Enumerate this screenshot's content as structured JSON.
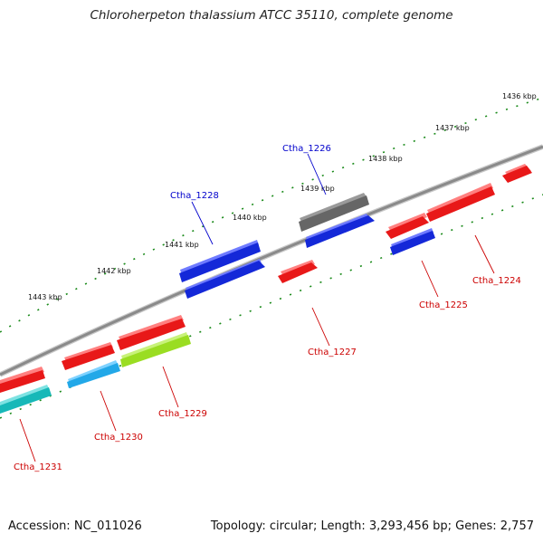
{
  "title": "Chloroherpeton thalassium ATCC 35110, complete genome",
  "accession": "Accession: NC_011026",
  "stats": "Topology: circular; Length: 3,293,456 bp; Genes: 2,757",
  "colors": {
    "backbone": "#8a8a8a",
    "tick": "#1a8a1a",
    "label_red": "#cc0000",
    "label_blue": "#0000cc"
  },
  "kbp_labels": [
    {
      "id": "1436",
      "text": "1436 kbp"
    },
    {
      "id": "1437",
      "text": "1437 kbp"
    },
    {
      "id": "1438",
      "text": "1438 kbp"
    },
    {
      "id": "1439",
      "text": "1439 kbp"
    },
    {
      "id": "1440",
      "text": "1440 kbp"
    },
    {
      "id": "1441",
      "text": "1441 kbp"
    },
    {
      "id": "1442",
      "text": "1442 kbp"
    },
    {
      "id": "1443",
      "text": "1443 kbp"
    }
  ],
  "gene_labels": [
    {
      "id": "ctha_1224",
      "text": "Ctha_1224",
      "color": "#cc0000"
    },
    {
      "id": "ctha_1225",
      "text": "Ctha_1225",
      "color": "#cc0000"
    },
    {
      "id": "ctha_1226",
      "text": "Ctha_1226",
      "color": "#0000cc"
    },
    {
      "id": "ctha_1227",
      "text": "Ctha_1227",
      "color": "#cc0000"
    },
    {
      "id": "ctha_1228",
      "text": "Ctha_1228",
      "color": "#0000cc"
    },
    {
      "id": "ctha_1229",
      "text": "Ctha_1229",
      "color": "#cc0000"
    },
    {
      "id": "ctha_1230",
      "text": "Ctha_1230",
      "color": "#cc0000"
    },
    {
      "id": "ctha_1231",
      "text": "Ctha_1231",
      "color": "#cc0000"
    }
  ],
  "features": [
    {
      "id": "f1",
      "color": "#e81818",
      "shadow": "#ff8080"
    },
    {
      "id": "f2",
      "color": "#e81818",
      "shadow": "#ff8080"
    },
    {
      "id": "f3",
      "color": "#e81818",
      "shadow": "#ff8080"
    },
    {
      "id": "f4",
      "color": "#1428d8",
      "shadow": "#6f7bff"
    },
    {
      "id": "f5",
      "color": "#666666",
      "shadow": "#9a9a9a"
    },
    {
      "id": "f6",
      "color": "#1428d8",
      "shadow": "#6f7bff"
    },
    {
      "id": "f7",
      "color": "#e81818",
      "shadow": "#ff8080"
    },
    {
      "id": "f8",
      "color": "#1428d8",
      "shadow": "#6f7bff"
    },
    {
      "id": "f9",
      "color": "#1428d8",
      "shadow": "#6f7bff"
    },
    {
      "id": "f10",
      "color": "#e81818",
      "shadow": "#ff8080"
    },
    {
      "id": "f11",
      "color": "#9add22",
      "shadow": "#c8f27a"
    },
    {
      "id": "f12",
      "color": "#e81818",
      "shadow": "#ff8080"
    },
    {
      "id": "f13",
      "color": "#22a8e8",
      "shadow": "#7fd2ff"
    },
    {
      "id": "f14",
      "color": "#e81818",
      "shadow": "#ff8080"
    },
    {
      "id": "f15",
      "color": "#17b8b8",
      "shadow": "#7ee2e2"
    }
  ]
}
